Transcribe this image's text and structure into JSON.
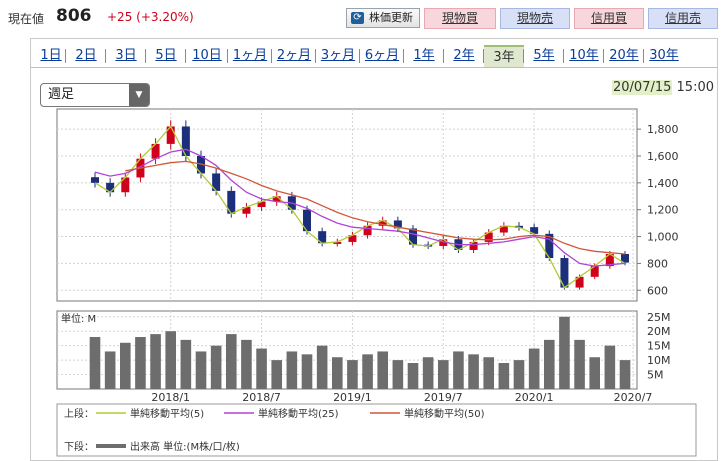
{
  "header": {
    "price_label": "現在値",
    "price_value": "806",
    "price_change": "+25 (+3.20%)",
    "refresh_label": "株価更新",
    "trade_buttons": [
      {
        "label": "現物買",
        "kind": "buy"
      },
      {
        "label": "現物売",
        "kind": "sell"
      },
      {
        "label": "信用買",
        "kind": "buy"
      },
      {
        "label": "信用売",
        "kind": "sell"
      }
    ]
  },
  "tabs": [
    "1日",
    "2日",
    "3日",
    "5日",
    "10日",
    "1ヶ月",
    "2ヶ月",
    "3ヶ月",
    "6ヶ月",
    "1年",
    "2年",
    "3年",
    "5年",
    "10年",
    "20年",
    "30年"
  ],
  "active_tab": "3年",
  "period_select": {
    "value": "週足"
  },
  "timestamp": {
    "date": "20/07/15",
    "time": "15:00"
  },
  "colors": {
    "up_candle": "#d0021b",
    "down_candle": "#1b2f7a",
    "ma5": "#b5c934",
    "ma25": "#b043d8",
    "ma50": "#d2573a",
    "volume": "#6d6d6d",
    "tab_active_bg": "#dfe8cf",
    "buy_bg": "#f8d7dc",
    "sell_bg": "#d7e0f7"
  },
  "chart_data": [
    {
      "type": "line",
      "panel": "price",
      "description": "",
      "x": [
        "2017/08",
        "2017/09",
        "2017/10",
        "2017/11",
        "2017/12",
        "2018/01",
        "2018/02",
        "2018/03",
        "2018/04",
        "2018/05",
        "2018/06",
        "2018/07",
        "2018/08",
        "2018/09",
        "2018/10",
        "2018/11",
        "2018/12",
        "2019/01",
        "2019/02",
        "2019/03",
        "2019/04",
        "2019/05",
        "2019/06",
        "2019/07",
        "2019/08",
        "2019/09",
        "2019/10",
        "2019/11",
        "2019/12",
        "2020/01",
        "2020/02",
        "2020/03",
        "2020/04",
        "2020/05",
        "2020/06",
        "2020/07"
      ],
      "series": [
        {
          "name": "単純移動平均(5)",
          "values": [
            1400,
            1330,
            1440,
            1580,
            1690,
            1820,
            1600,
            1470,
            1340,
            1170,
            1220,
            1260,
            1300,
            1200,
            1040,
            950,
            960,
            1010,
            1080,
            1120,
            1060,
            940,
            930,
            980,
            900,
            960,
            1030,
            1080,
            1070,
            1020,
            840,
            620,
            700,
            780,
            870,
            800
          ]
        },
        {
          "name": "単純移動平均(25)",
          "values": [
            1480,
            1450,
            1470,
            1520,
            1580,
            1630,
            1650,
            1600,
            1530,
            1420,
            1330,
            1280,
            1260,
            1250,
            1210,
            1150,
            1100,
            1070,
            1060,
            1050,
            1040,
            1020,
            990,
            960,
            940,
            940,
            950,
            960,
            980,
            1000,
            980,
            880,
            800,
            780,
            790,
            800
          ]
        },
        {
          "name": "単純移動平均(50)",
          "values": [
            null,
            null,
            1490,
            1510,
            1530,
            1550,
            1560,
            1540,
            1510,
            1470,
            1430,
            1380,
            1340,
            1310,
            1280,
            1230,
            1180,
            1140,
            1110,
            1090,
            1070,
            1050,
            1030,
            1010,
            990,
            980,
            975,
            980,
            1000,
            1010,
            1000,
            950,
            910,
            890,
            880,
            870
          ]
        }
      ],
      "candles_weekly_close": [
        1400,
        1330,
        1440,
        1580,
        1690,
        1820,
        1600,
        1470,
        1340,
        1170,
        1220,
        1260,
        1300,
        1200,
        1040,
        950,
        960,
        1010,
        1080,
        1120,
        1060,
        940,
        930,
        980,
        900,
        960,
        1030,
        1080,
        1070,
        1020,
        840,
        620,
        700,
        780,
        870,
        806
      ],
      "y_ticks": [
        "1,800",
        "1,600",
        "1,400",
        "1,200",
        "1,000",
        "800",
        "600"
      ],
      "ylim": [
        520,
        1950
      ]
    },
    {
      "type": "bar",
      "panel": "volume",
      "unit_label": "単位: M",
      "x": [
        "2017/08",
        "2017/09",
        "2017/10",
        "2017/11",
        "2017/12",
        "2018/01",
        "2018/02",
        "2018/03",
        "2018/04",
        "2018/05",
        "2018/06",
        "2018/07",
        "2018/08",
        "2018/09",
        "2018/10",
        "2018/11",
        "2018/12",
        "2019/01",
        "2019/02",
        "2019/03",
        "2019/04",
        "2019/05",
        "2019/06",
        "2019/07",
        "2019/08",
        "2019/09",
        "2019/10",
        "2019/11",
        "2019/12",
        "2020/01",
        "2020/02",
        "2020/03",
        "2020/04",
        "2020/05",
        "2020/06",
        "2020/07"
      ],
      "values": [
        18,
        13,
        16,
        18,
        19,
        20,
        17,
        13,
        15,
        19,
        17,
        14,
        10,
        13,
        12,
        15,
        11,
        10,
        12,
        13,
        10,
        9,
        11,
        10,
        13,
        12,
        11,
        9,
        10,
        14,
        17,
        25,
        17,
        11,
        15,
        10
      ],
      "y_ticks": [
        "25M",
        "20M",
        "15M",
        "10M",
        "5M"
      ],
      "ylim": [
        0,
        27
      ]
    }
  ],
  "x_axis_labels": [
    "2018/1",
    "2018/7",
    "2019/1",
    "2019/7",
    "2020/1",
    "2020/7"
  ],
  "legend": {
    "upper_label": "上段：",
    "lower_label": "下段：",
    "items": [
      {
        "name": "単純移動平均(5)",
        "color_key": "ma5"
      },
      {
        "name": "単純移動平均(25)",
        "color_key": "ma25"
      },
      {
        "name": "単純移動平均(50)",
        "color_key": "ma50"
      }
    ],
    "volume_item": "出来高 単位:(M株/口/枚)"
  }
}
